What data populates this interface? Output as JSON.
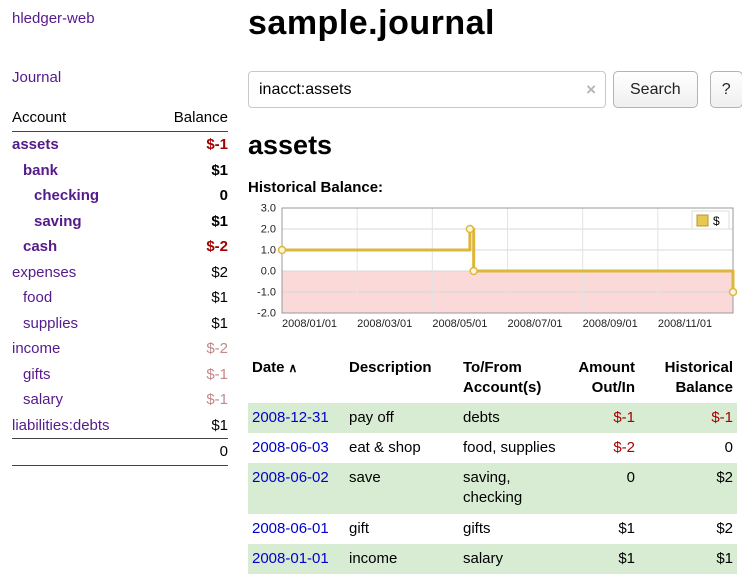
{
  "app": {
    "title": "hledger-web"
  },
  "sidebar": {
    "journal_link": "Journal",
    "accounts_header": "Account",
    "balance_header": "Balance",
    "accounts": [
      {
        "name": "assets",
        "balance": "$-1",
        "indent": 0,
        "bold": true,
        "name_negative": true,
        "balance_negative": true
      },
      {
        "name": "bank",
        "balance": "$1",
        "indent": 1,
        "bold": true
      },
      {
        "name": "checking",
        "balance": "0",
        "indent": 2,
        "bold": true
      },
      {
        "name": "saving",
        "balance": "$1",
        "indent": 2,
        "bold": true
      },
      {
        "name": "cash",
        "balance": "$-2",
        "indent": 1,
        "bold": true,
        "name_negative": true,
        "balance_negative": true
      },
      {
        "name": "expenses",
        "balance": "$2",
        "indent": 0
      },
      {
        "name": "food",
        "balance": "$1",
        "indent": 1
      },
      {
        "name": "supplies",
        "balance": "$1",
        "indent": 1
      },
      {
        "name": "income",
        "balance": "$-2",
        "indent": 0,
        "balance_negative_muted": true
      },
      {
        "name": "gifts",
        "balance": "$-1",
        "indent": 1,
        "balance_negative_muted": true
      },
      {
        "name": "salary",
        "balance": "$-1",
        "indent": 1,
        "balance_negative_muted": true
      },
      {
        "name": "liabilities:debts",
        "balance": "$1",
        "indent": 0
      }
    ],
    "total": "0"
  },
  "main": {
    "title": "sample.journal",
    "search": {
      "value": "inacct:assets",
      "clear_icon": "×",
      "button_label": "Search",
      "help_label": "?"
    },
    "account_title": "assets",
    "chart_label": "Historical Balance:"
  },
  "chart_data": {
    "type": "line",
    "step": true,
    "title": "Historical Balance",
    "xlabel": "",
    "ylabel": "",
    "xlim": [
      0,
      12
    ],
    "ylim": [
      -2,
      3
    ],
    "grid": true,
    "y_ticks": [
      3.0,
      2.0,
      1.0,
      0.0,
      -1.0,
      -2.0
    ],
    "x_ticks": [
      {
        "x": 0,
        "label": "2008/01/01"
      },
      {
        "x": 2,
        "label": "2008/03/01"
      },
      {
        "x": 4,
        "label": "2008/05/01"
      },
      {
        "x": 6,
        "label": "2008/07/01"
      },
      {
        "x": 8,
        "label": "2008/09/01"
      },
      {
        "x": 10,
        "label": "2008/11/01"
      }
    ],
    "series": [
      {
        "name": "$",
        "color": "#ddb63c",
        "marker_fill": "#fdf6dc",
        "points": [
          {
            "date": "2008-01-01",
            "x": 0,
            "y": 1
          },
          {
            "date": "2008-06-01",
            "x": 5,
            "y": 2
          },
          {
            "date": "2008-06-03",
            "x": 5.1,
            "y": 0
          },
          {
            "date": "2008-12-31",
            "x": 12,
            "y": -1
          }
        ]
      }
    ],
    "negative_region_color": "#fcd9d9",
    "legend": {
      "position": "top-right",
      "label": "$",
      "swatch_color": "#e8c84f",
      "swatch_border": "#b89530"
    }
  },
  "register": {
    "sort_icon": "∧",
    "headers": [
      {
        "lines": [
          "Date"
        ],
        "sort": "asc",
        "align": "left"
      },
      {
        "lines": [
          "Description"
        ],
        "align": "left"
      },
      {
        "lines": [
          "To/From",
          "Account(s)"
        ],
        "align": "left"
      },
      {
        "lines": [
          "Amount",
          "Out/In"
        ],
        "align": "right"
      },
      {
        "lines": [
          "Historical",
          "Balance"
        ],
        "align": "right"
      }
    ],
    "rows": [
      {
        "date": "2008-12-31",
        "description": "pay off",
        "accounts": "debts",
        "amount": "$-1",
        "amount_negative": true,
        "balance": "$-1",
        "balance_negative": true
      },
      {
        "date": "2008-06-03",
        "description": "eat & shop",
        "accounts": "food, supplies",
        "amount": "$-2",
        "amount_negative": true,
        "balance": "0"
      },
      {
        "date": "2008-06-02",
        "description": "save",
        "accounts": "saving, checking",
        "amount": "0",
        "balance": "$2"
      },
      {
        "date": "2008-06-01",
        "description": "gift",
        "accounts": "gifts",
        "amount": "$1",
        "balance": "$2"
      },
      {
        "date": "2008-01-01",
        "description": "income",
        "accounts": "salary",
        "amount": "$1",
        "balance": "$1"
      }
    ]
  },
  "colors": {
    "link_purple": "#551a8b",
    "link_blue": "#0000cc",
    "negative_red": "#a40000",
    "negative_muted": "#c28989",
    "row_stripe_green": "#d8ecd3"
  }
}
